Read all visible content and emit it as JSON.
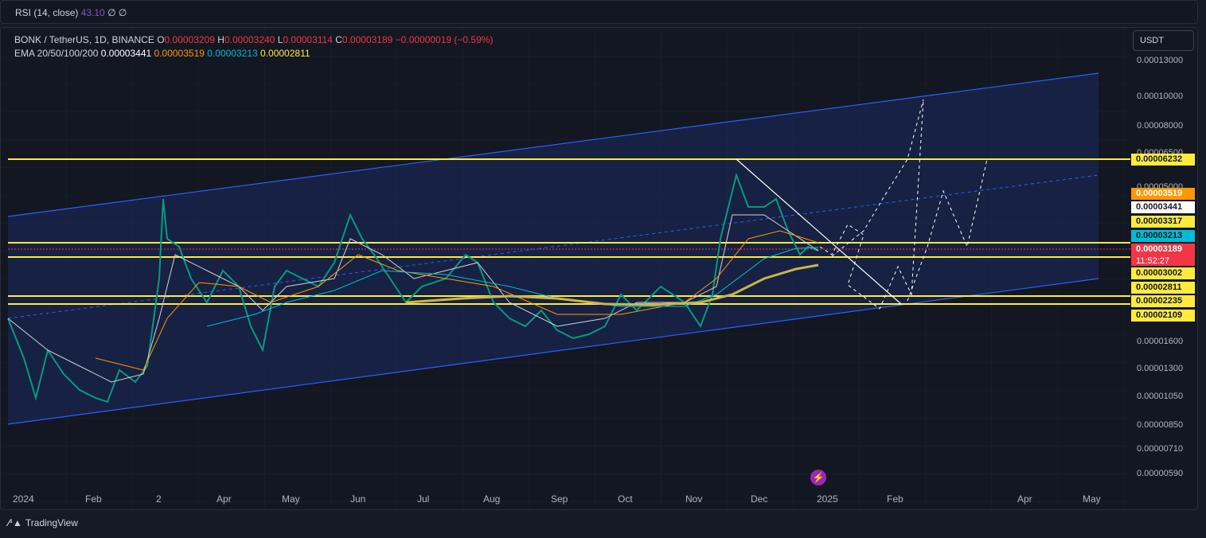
{
  "rsi": {
    "label": "RSI (14, close)",
    "value": "43.10",
    "extra": "∅ ∅"
  },
  "legend": {
    "pair": "BONK / TetherUS, 1D, BINANCE",
    "o_label": "O",
    "o": "0.00003209",
    "h_label": "H",
    "h": "0.00003240",
    "l_label": "L",
    "l": "0.00003114",
    "c_label": "C",
    "c": "0.00003189",
    "change": "−0.00000019 (−0.59%)",
    "ema_label": "EMA 20/50/100/200",
    "ema20": "0.00003441",
    "ema50": "0.00003519",
    "ema100": "0.00003213",
    "ema200": "0.00002811"
  },
  "currency_button": "USDT",
  "price_ticks": [
    "0.00013000",
    "0.00010000",
    "0.00008000",
    "0.00006500",
    "0.00005000",
    "0.00001600",
    "0.00001300",
    "0.00001050",
    "0.00000850",
    "0.00000710",
    "0.00000590"
  ],
  "badges": {
    "b1": "0.00006232",
    "b2": "0.00003519",
    "b3": "0.00003441",
    "b4": "0.00003317",
    "b5": "0.00003213",
    "b6": "0.00003189",
    "b6_timer": "11:52:27",
    "b7": "0.00003002",
    "b8": "0.00002811",
    "b9": "0.00002235",
    "b10": "0.00002109"
  },
  "months": [
    "2024",
    "Feb",
    "2",
    "Apr",
    "May",
    "Jun",
    "Jul",
    "Aug",
    "Sep",
    "Oct",
    "Nov",
    "Dec",
    "2025",
    "Feb",
    "Apr",
    "May"
  ],
  "footer": {
    "brand": "TradingView"
  },
  "colors": {
    "up": "#089981",
    "down": "#f23645",
    "channel": "#2962ff",
    "level": "#ffeb3b"
  }
}
